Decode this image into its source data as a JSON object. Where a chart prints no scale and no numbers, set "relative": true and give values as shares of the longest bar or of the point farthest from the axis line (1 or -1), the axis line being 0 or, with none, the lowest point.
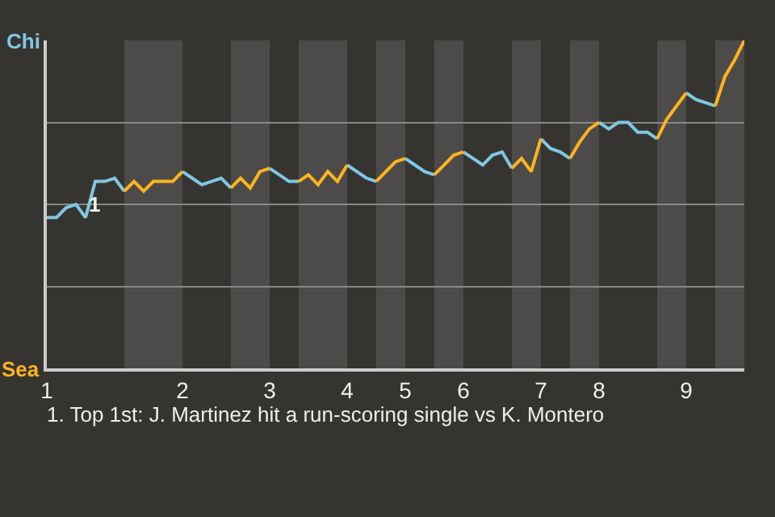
{
  "chart_data": {
    "type": "line",
    "relative": true,
    "categories": [
      "1",
      null,
      null,
      null,
      null,
      null,
      null,
      null,
      null,
      null,
      null,
      null,
      null,
      null,
      "2",
      null,
      null,
      null,
      null,
      null,
      null,
      null,
      null,
      "3",
      null,
      null,
      null,
      null,
      null,
      null,
      null,
      "4",
      null,
      null,
      null,
      null,
      null,
      "5",
      null,
      null,
      null,
      null,
      null,
      "6",
      null,
      null,
      null,
      null,
      null,
      null,
      null,
      "7",
      null,
      null,
      null,
      null,
      null,
      "8",
      null,
      null,
      null,
      null,
      null,
      null,
      null,
      null,
      "9",
      null,
      null,
      null,
      null,
      null,
      null
    ],
    "series": [
      {
        "color": "#7ec8e3",
        "values": [
          0.46,
          0.46,
          0.49,
          0.5,
          0.46,
          0.57,
          0.57,
          0.58,
          0.54,
          null,
          null,
          null,
          null,
          null,
          0.6,
          0.58,
          0.56,
          0.57,
          0.58,
          0.55,
          null,
          null,
          null,
          0.61,
          0.59,
          0.57,
          0.57,
          null,
          null,
          null,
          null,
          0.62,
          0.6,
          0.58,
          0.57,
          null,
          null,
          0.64,
          0.62,
          0.6,
          0.59,
          null,
          null,
          0.66,
          0.64,
          0.62,
          0.65,
          0.66,
          0.61,
          null,
          null,
          0.7,
          0.67,
          0.66,
          0.64,
          null,
          null,
          0.75,
          0.73,
          0.75,
          0.75,
          0.72,
          0.72,
          0.7,
          null,
          null,
          0.84,
          0.82,
          0.81,
          0.8,
          null,
          null,
          null
        ]
      },
      {
        "color": "#ffb41e",
        "values": [
          null,
          null,
          null,
          null,
          null,
          null,
          null,
          null,
          0.54,
          0.57,
          0.54,
          0.57,
          0.57,
          0.57,
          0.6,
          null,
          null,
          null,
          null,
          0.55,
          0.58,
          0.55,
          0.6,
          0.61,
          null,
          null,
          0.57,
          0.59,
          0.56,
          0.6,
          0.57,
          0.62,
          null,
          null,
          0.57,
          0.6,
          0.63,
          0.64,
          null,
          null,
          0.59,
          0.62,
          0.65,
          0.66,
          null,
          null,
          null,
          null,
          0.61,
          0.64,
          0.6,
          0.7,
          null,
          null,
          0.64,
          0.69,
          0.73,
          0.75,
          null,
          null,
          null,
          null,
          null,
          0.7,
          0.76,
          0.8,
          0.84,
          null,
          null,
          0.8,
          0.89,
          0.94,
          1.0
        ]
      }
    ],
    "grid": "y",
    "marker": "none",
    "line_style": "solid",
    "annotations": [
      "Chi",
      "Sea",
      {
        "text": "1",
        "y": 0.5
      },
      "1. Top 1st: J. Martinez hit a run-scoring single vs K. Montero"
    ]
  }
}
